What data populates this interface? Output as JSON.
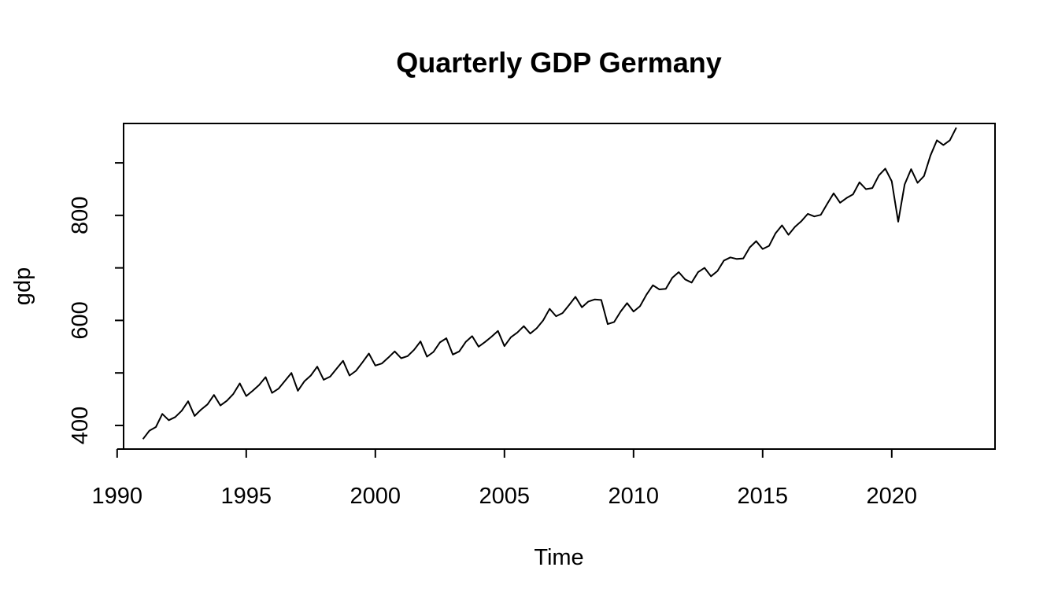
{
  "chart_data": {
    "type": "line",
    "title": "Quarterly GDP Germany",
    "xlabel": "Time",
    "ylabel": "gdp",
    "xlim": [
      1990.25,
      2024.0
    ],
    "ylim": [
      355,
      975
    ],
    "x_ticks": [
      1990,
      1995,
      2000,
      2005,
      2010,
      2015,
      2020
    ],
    "y_ticks": [
      400,
      500,
      600,
      700,
      800,
      900
    ],
    "y_tick_labels": [
      "400",
      "",
      "600",
      "",
      "800",
      ""
    ],
    "grid": false,
    "line_color": "#000000",
    "x_start": 1991.0,
    "x_step": 0.25,
    "values": [
      374,
      390,
      397,
      422,
      410,
      416,
      428,
      446,
      418,
      430,
      440,
      458,
      438,
      447,
      460,
      480,
      456,
      466,
      477,
      492,
      462,
      470,
      485,
      500,
      466,
      484,
      495,
      512,
      487,
      493,
      508,
      523,
      495,
      504,
      520,
      537,
      514,
      518,
      529,
      541,
      528,
      532,
      544,
      560,
      531,
      540,
      558,
      566,
      535,
      541,
      559,
      570,
      550,
      559,
      569,
      580,
      551,
      568,
      577,
      589,
      575,
      585,
      600,
      622,
      608,
      614,
      629,
      645,
      625,
      636,
      640,
      639,
      593,
      597,
      617,
      633,
      617,
      627,
      649,
      667,
      659,
      660,
      681,
      692,
      678,
      672,
      692,
      700,
      684,
      694,
      714,
      720,
      717,
      718,
      739,
      751,
      736,
      742,
      766,
      781,
      763,
      778,
      789,
      803,
      798,
      801,
      822,
      842,
      824,
      833,
      840,
      863,
      850,
      852,
      876,
      889,
      865,
      788,
      859,
      888,
      862,
      875,
      914,
      943,
      934,
      943,
      967
    ]
  }
}
